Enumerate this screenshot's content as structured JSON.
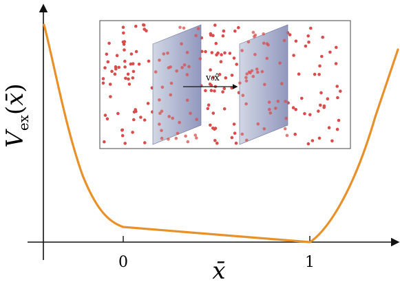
{
  "axes": {
    "ylabel": {
      "main": "V",
      "subscript": "ex",
      "argument": "x̄"
    },
    "xlabel": "x̄",
    "ticks": [
      {
        "id": "tick-0",
        "label": "0",
        "x": 0
      },
      {
        "id": "tick-1",
        "label": "1",
        "x": 1
      }
    ]
  },
  "curve": {
    "color": "#E8912B",
    "description_points_data_units": [
      [
        -0.43,
        1.18
      ],
      [
        -0.25,
        0.55
      ],
      [
        -0.1,
        0.18
      ],
      [
        0,
        0.08
      ],
      [
        1,
        0
      ],
      [
        1.15,
        0.25
      ],
      [
        1.3,
        0.8
      ],
      [
        1.43,
        1.05
      ]
    ]
  },
  "inset": {
    "velocity_label": "v₀x̂",
    "particle_color": "#D94C4C",
    "plate_color": "#8C90B8"
  }
}
